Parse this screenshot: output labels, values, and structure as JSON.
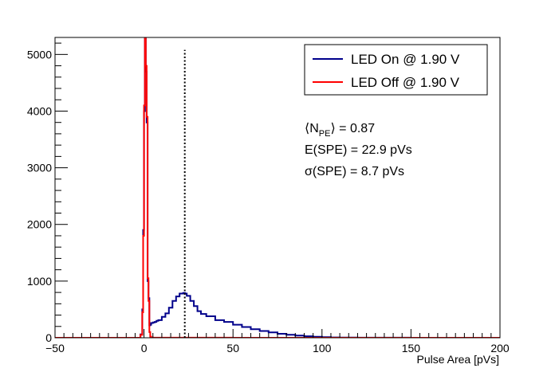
{
  "chart_data": {
    "type": "line",
    "title": "",
    "xlabel": "Pulse Area [pVs]",
    "ylabel": "",
    "xlim": [
      -50,
      200
    ],
    "ylim": [
      0,
      5300
    ],
    "grid": false,
    "x_ticks": [
      -50,
      0,
      50,
      100,
      150,
      200
    ],
    "x_tick_labels": [
      "−50",
      "0",
      "50",
      "100",
      "150",
      "200"
    ],
    "y_ticks": [
      0,
      1000,
      2000,
      3000,
      4000,
      5000
    ],
    "y_tick_labels": [
      "0",
      "1000",
      "2000",
      "3000",
      "4000",
      "5000"
    ],
    "legend_position": "top-right",
    "series": [
      {
        "name": "LED On @ 1.90 V",
        "color": "#00008b",
        "x": [
          -50,
          -3,
          -2,
          -1,
          -0.5,
          0,
          0.5,
          1,
          1.5,
          2,
          2.5,
          3,
          3.5,
          4,
          5,
          6,
          7,
          8,
          10,
          12,
          14,
          16,
          18,
          20,
          22,
          23,
          24,
          26,
          28,
          30,
          32,
          35,
          40,
          45,
          50,
          55,
          60,
          65,
          70,
          75,
          80,
          85,
          90,
          95,
          100,
          105,
          110,
          120,
          150,
          200
        ],
        "values": [
          0,
          0,
          60,
          500,
          1900,
          4000,
          6500,
          4700,
          3800,
          1000,
          700,
          220,
          230,
          260,
          270,
          280,
          300,
          310,
          370,
          430,
          530,
          650,
          730,
          780,
          790,
          780,
          740,
          650,
          560,
          470,
          420,
          380,
          310,
          280,
          230,
          190,
          150,
          120,
          95,
          70,
          52,
          38,
          27,
          18,
          10,
          6,
          3,
          1,
          0,
          0
        ]
      },
      {
        "name": "LED Off @ 1.90 V",
        "color": "#ff0000",
        "x": [
          -50,
          -3,
          -2,
          -1,
          -0.5,
          0,
          0.5,
          1,
          1.5,
          2,
          2.5,
          3,
          3.5,
          4,
          5,
          10,
          20,
          50,
          100,
          150,
          200
        ],
        "values": [
          0,
          0,
          50,
          450,
          1800,
          4100,
          6500,
          4800,
          3900,
          1050,
          650,
          100,
          20,
          5,
          2,
          1,
          1,
          0,
          0,
          0,
          0
        ]
      }
    ],
    "reference_lines": [
      {
        "axis": "x",
        "value": 22.9,
        "y_top": 5080,
        "style": "dotted",
        "color": "#000000"
      }
    ],
    "annotations": [
      {
        "name": "npe",
        "text": "⟨N",
        "sub": "PE",
        "tail": "⟩ = 0.87"
      },
      {
        "name": "espe",
        "text": "E(SPE) = 22.9 pVs"
      },
      {
        "name": "sigma",
        "text": "σ(SPE) = 8.7 pVs"
      }
    ]
  }
}
